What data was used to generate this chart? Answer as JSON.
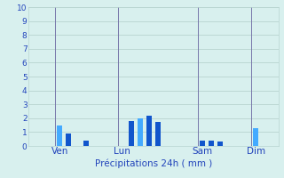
{
  "xlabel": "Précipitations 24h ( mm )",
  "ylim": [
    0,
    10
  ],
  "yticks": [
    0,
    1,
    2,
    3,
    4,
    5,
    6,
    7,
    8,
    9,
    10
  ],
  "background_color": "#d8f0ee",
  "grid_color": "#b8d4d0",
  "xlabel_color": "#2244bb",
  "tick_color": "#2244bb",
  "n_bars": 28,
  "day_labels": [
    "Ven",
    "Lun",
    "Sam",
    "Dim"
  ],
  "day_positions": [
    3,
    10,
    19,
    25
  ],
  "bar_values": [
    0,
    0,
    0,
    1.5,
    0.9,
    0,
    0.4,
    0,
    0,
    0,
    0,
    1.8,
    2.0,
    2.2,
    1.7,
    0,
    0,
    0,
    0,
    0.4,
    0.4,
    0.3,
    0,
    0,
    0,
    1.3,
    0,
    0
  ],
  "bar_colors": [
    "#1155cc",
    "#1155cc",
    "#1155cc",
    "#44aaff",
    "#1155cc",
    "#1155cc",
    "#1155cc",
    "#1155cc",
    "#1155cc",
    "#1155cc",
    "#1155cc",
    "#1155cc",
    "#44aaff",
    "#1155cc",
    "#1155cc",
    "#1155cc",
    "#1155cc",
    "#1155cc",
    "#1155cc",
    "#1155cc",
    "#1155cc",
    "#1155cc",
    "#1155cc",
    "#1155cc",
    "#1155cc",
    "#44aaff",
    "#1155cc",
    "#1155cc"
  ],
  "vline_positions": [
    2.5,
    9.5,
    18.5,
    24.5
  ],
  "vline_color": "#7777aa",
  "bar_width": 0.6
}
